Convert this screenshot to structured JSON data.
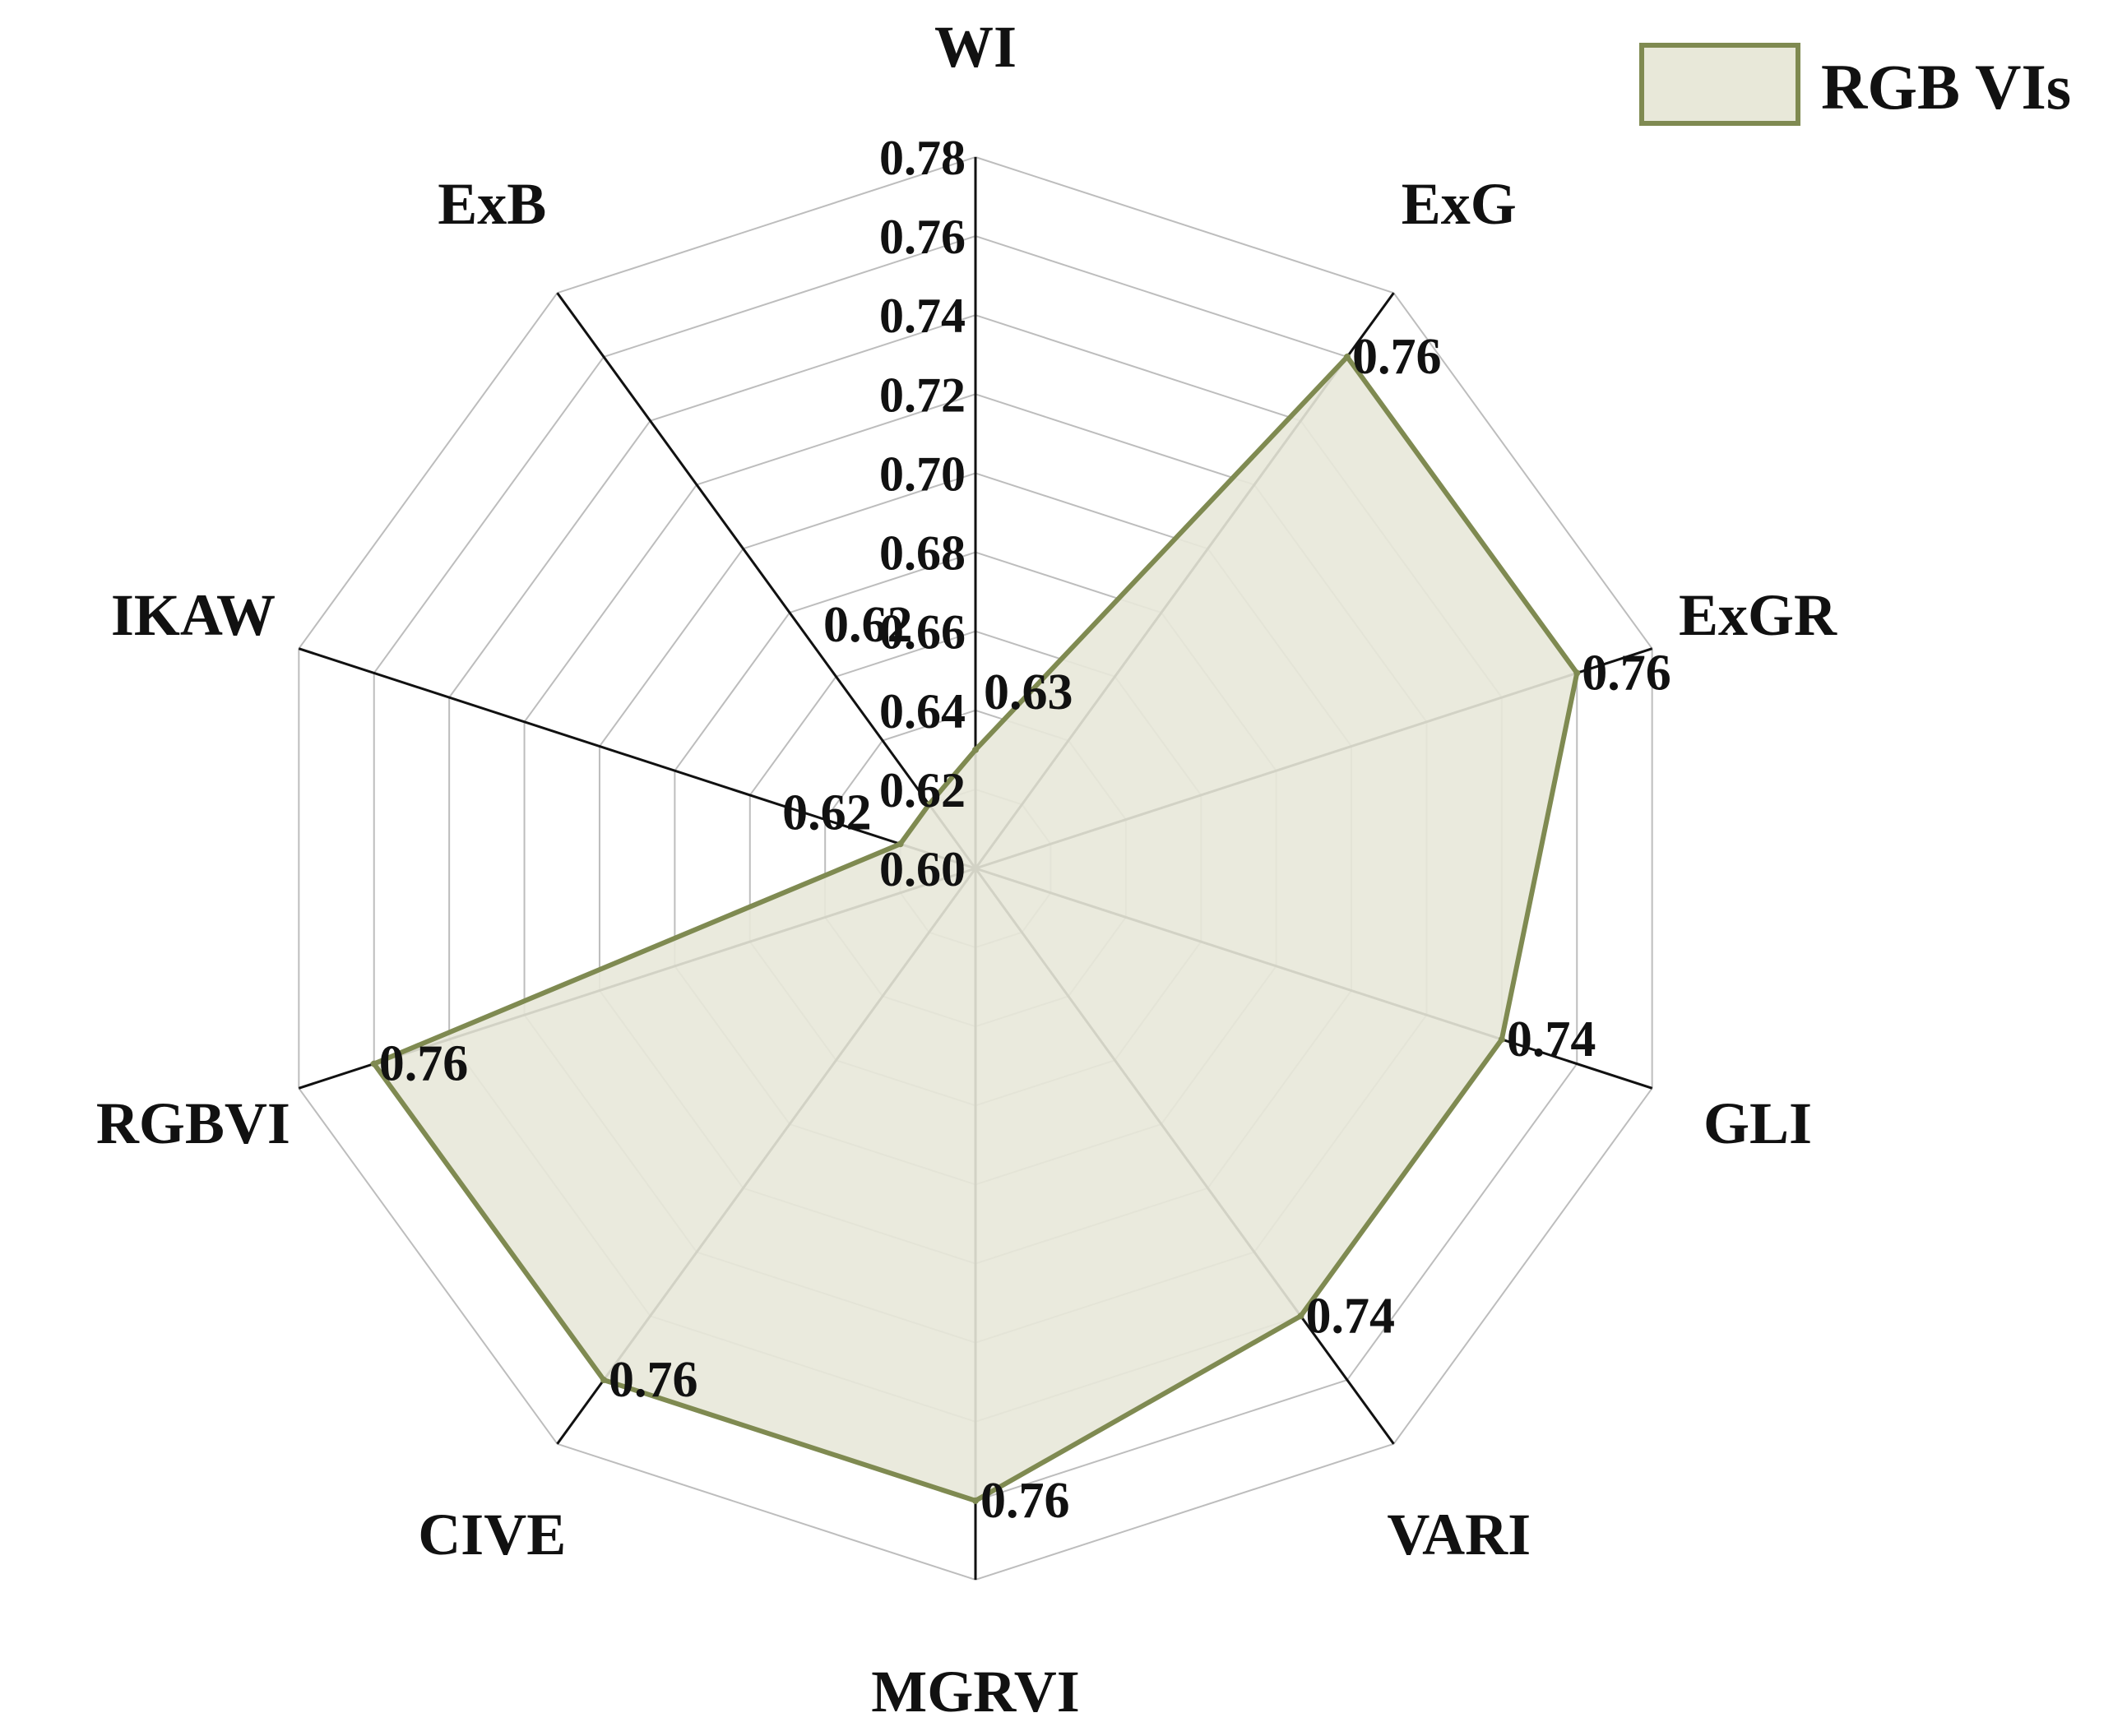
{
  "chart_data": {
    "type": "radar",
    "axes": [
      "WI",
      "ExG",
      "ExGR",
      "GLI",
      "VARI",
      "MGRVI",
      "CIVE",
      "RGBVI",
      "IKAW",
      "ExB"
    ],
    "series": [
      {
        "name": "RGB VIs",
        "values": [
          0.63,
          0.76,
          0.76,
          0.74,
          0.74,
          0.76,
          0.76,
          0.76,
          0.62,
          0.62
        ],
        "value_labels": [
          "0.63",
          "0.76",
          "0.76",
          "0.74",
          "0.74",
          "0.76",
          "0.76",
          "0.76",
          "0.62",
          "0.62"
        ]
      }
    ],
    "rlim": [
      0.6,
      0.78
    ],
    "ticks": [
      "0.60",
      "0.62",
      "0.64",
      "0.66",
      "0.68",
      "0.70",
      "0.72",
      "0.74",
      "0.76",
      "0.78"
    ],
    "grid": true,
    "legend_position": "top-right",
    "colors": {
      "fill": "#e8e8d9",
      "line": "#7f8a51",
      "grid": "#bdbdbd",
      "axis": "#111111"
    }
  }
}
